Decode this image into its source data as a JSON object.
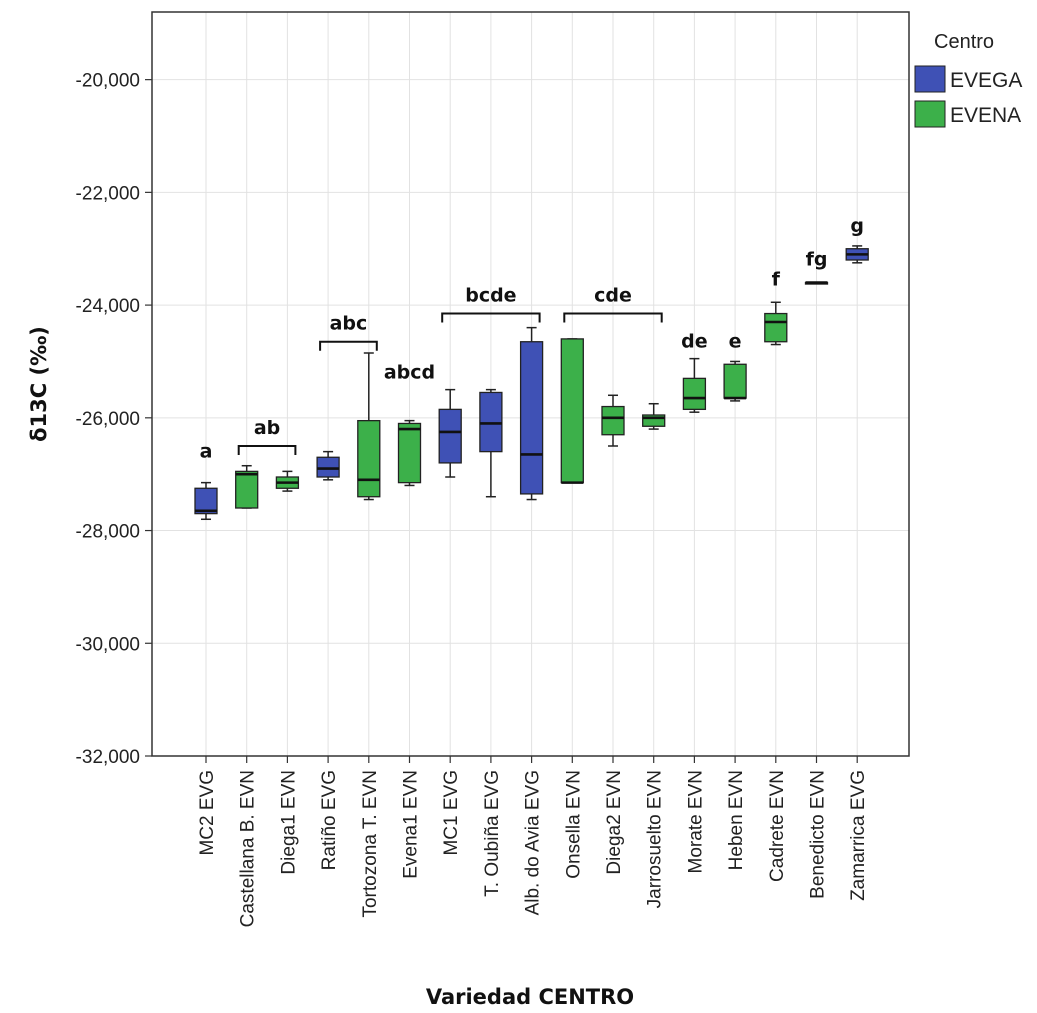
{
  "chart_data": {
    "type": "boxplot",
    "xlabel": "Variedad CENTRO",
    "ylabel": "δ13C (‰)",
    "ylim": [
      -32,
      -18.8
    ],
    "yticks": [
      -20,
      -22,
      -24,
      -26,
      -28,
      -30,
      -32
    ],
    "ytick_labels": [
      "-20,000",
      "-22,000",
      "-24,000",
      "-26,000",
      "-28,000",
      "-30,000",
      "-32,000"
    ],
    "grid": true,
    "legend": {
      "title": "Centro",
      "placement": "right",
      "entries": [
        {
          "name": "EVEGA",
          "color": "#3f51b5"
        },
        {
          "name": "EVENA",
          "color": "#3cb04a"
        }
      ]
    },
    "series": [
      {
        "name": "EVEGA",
        "color": "#3f51b5"
      },
      {
        "name": "EVENA",
        "color": "#3cb04a"
      }
    ],
    "boxes": [
      {
        "category": "MC2 EVG",
        "centro": "EVEGA",
        "min": -27.8,
        "q1": -27.7,
        "median": -27.65,
        "q3": -27.25,
        "max": -27.15
      },
      {
        "category": "Castellana B. EVN",
        "centro": "EVENA",
        "min": -27.6,
        "q1": -27.6,
        "median": -27.0,
        "q3": -26.95,
        "max": -26.85
      },
      {
        "category": "Diega1 EVN",
        "centro": "EVENA",
        "min": -27.3,
        "q1": -27.25,
        "median": -27.15,
        "q3": -27.05,
        "max": -26.95
      },
      {
        "category": "Ratiño EVG",
        "centro": "EVEGA",
        "min": -27.1,
        "q1": -27.05,
        "median": -26.9,
        "q3": -26.7,
        "max": -26.6
      },
      {
        "category": "Tortozona T. EVN",
        "centro": "EVENA",
        "min": -27.45,
        "q1": -27.4,
        "median": -27.1,
        "q3": -26.05,
        "max": -24.85
      },
      {
        "category": "Evena1 EVN",
        "centro": "EVENA",
        "min": -27.2,
        "q1": -27.15,
        "median": -26.2,
        "q3": -26.1,
        "max": -26.05
      },
      {
        "category": "MC1 EVG",
        "centro": "EVEGA",
        "min": -27.05,
        "q1": -26.8,
        "median": -26.25,
        "q3": -25.85,
        "max": -25.5
      },
      {
        "category": "T. Oubiña EVG",
        "centro": "EVEGA",
        "min": -27.4,
        "q1": -26.6,
        "median": -26.1,
        "q3": -25.55,
        "max": -25.5
      },
      {
        "category": "Alb. do Avia EVG",
        "centro": "EVEGA",
        "min": -27.45,
        "q1": -27.35,
        "median": -26.65,
        "q3": -24.65,
        "max": -24.4
      },
      {
        "category": "Onsella EVN",
        "centro": "EVENA",
        "min": -27.15,
        "q1": -27.15,
        "median": -27.15,
        "q3": -24.6,
        "max": -24.6
      },
      {
        "category": "Diega2 EVN",
        "centro": "EVENA",
        "min": -26.5,
        "q1": -26.3,
        "median": -26.0,
        "q3": -25.8,
        "max": -25.6
      },
      {
        "category": "Jarrosuelto EVN",
        "centro": "EVENA",
        "min": -26.2,
        "q1": -26.15,
        "median": -26.0,
        "q3": -25.95,
        "max": -25.75
      },
      {
        "category": "Morate EVN",
        "centro": "EVENA",
        "min": -25.9,
        "q1": -25.85,
        "median": -25.65,
        "q3": -25.3,
        "max": -24.95
      },
      {
        "category": "Heben EVN",
        "centro": "EVENA",
        "min": -25.7,
        "q1": -25.65,
        "median": -25.65,
        "q3": -25.05,
        "max": -25.0
      },
      {
        "category": "Cadrete EVN",
        "centro": "EVENA",
        "min": -24.7,
        "q1": -24.65,
        "median": -24.3,
        "q3": -24.15,
        "max": -23.95
      },
      {
        "category": "Benedicto EVN",
        "centro": "EVENA",
        "min": -23.6,
        "q1": -23.6,
        "median": -23.6,
        "q3": -23.6,
        "max": -23.6
      },
      {
        "category": "Zamarrica EVG",
        "centro": "EVEGA",
        "min": -23.25,
        "q1": -23.2,
        "median": -23.1,
        "q3": -23.0,
        "max": -22.95
      }
    ],
    "significance_letters": [
      {
        "label": "a",
        "from": 0,
        "to": 0,
        "y": -26.7
      },
      {
        "label": "ab",
        "from": 1,
        "to": 2,
        "y": -26.5,
        "bracket": true
      },
      {
        "label": "abc",
        "from": 3,
        "to": 4,
        "y": -24.65,
        "bracket": true
      },
      {
        "label": "abcd",
        "from": 5,
        "to": 5,
        "y": -25.3
      },
      {
        "label": "bcde",
        "from": 6,
        "to": 8,
        "y": -24.15,
        "bracket": true
      },
      {
        "label": "cde",
        "from": 9,
        "to": 11,
        "y": -24.15,
        "bracket": true
      },
      {
        "label": "de",
        "from": 12,
        "to": 12,
        "y": -24.75
      },
      {
        "label": "e",
        "from": 13,
        "to": 13,
        "y": -24.75
      },
      {
        "label": "f",
        "from": 14,
        "to": 14,
        "y": -23.65
      },
      {
        "label": "fg",
        "from": 15,
        "to": 15,
        "y": -23.3
      },
      {
        "label": "g",
        "from": 16,
        "to": 16,
        "y": -22.7
      }
    ]
  }
}
